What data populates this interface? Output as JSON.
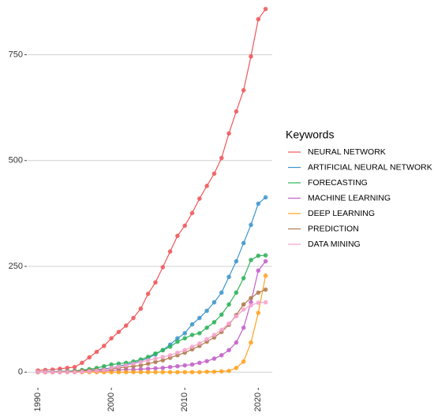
{
  "chart_data": {
    "type": "line",
    "legend_title": "Keywords",
    "x": [
      1990,
      1991,
      1992,
      1993,
      1994,
      1995,
      1996,
      1997,
      1998,
      1999,
      2000,
      2001,
      2002,
      2003,
      2004,
      2005,
      2006,
      2007,
      2008,
      2009,
      2010,
      2011,
      2012,
      2013,
      2014,
      2015,
      2016,
      2017,
      2018,
      2019,
      2020,
      2021
    ],
    "xlim": [
      1988.6,
      2021.9
    ],
    "xticks": [
      1990,
      2000,
      2010,
      2020
    ],
    "ylim": [
      -33,
      870
    ],
    "yticks": [
      0,
      250,
      500,
      750
    ],
    "grid": true,
    "legend": "right",
    "series": [
      {
        "name": "NEURAL NETWORK",
        "color": "#f0575a",
        "values": [
          4,
          5,
          6,
          8,
          10,
          12,
          22,
          35,
          48,
          62,
          80,
          95,
          110,
          128,
          150,
          185,
          212,
          248,
          285,
          322,
          346,
          376,
          410,
          440,
          469,
          506,
          564,
          616,
          666,
          746,
          834,
          858
        ]
      },
      {
        "name": "ARTIFICIAL NEURAL NETWORK",
        "color": "#3e96cc",
        "values": [
          0,
          1,
          1,
          2,
          2,
          3,
          4,
          5,
          6,
          8,
          10,
          14,
          18,
          22,
          27,
          33,
          42,
          52,
          65,
          80,
          92,
          113,
          128,
          145,
          165,
          188,
          225,
          262,
          305,
          348,
          398,
          413
        ]
      },
      {
        "name": "FORECASTING",
        "color": "#2fb35a",
        "values": [
          0,
          0,
          1,
          1,
          2,
          3,
          5,
          7,
          10,
          14,
          18,
          20,
          22,
          25,
          30,
          36,
          44,
          52,
          60,
          72,
          80,
          88,
          92,
          105,
          118,
          136,
          160,
          188,
          222,
          265,
          275,
          276
        ]
      },
      {
        "name": "MACHINE LEARNING",
        "color": "#c460c8",
        "values": [
          0,
          0,
          0,
          0,
          1,
          1,
          1,
          2,
          2,
          3,
          4,
          5,
          6,
          6,
          7,
          8,
          9,
          10,
          12,
          14,
          16,
          18,
          22,
          26,
          32,
          40,
          52,
          70,
          105,
          165,
          240,
          262
        ]
      },
      {
        "name": "DEEP LEARNING",
        "color": "#ffa21f",
        "values": [
          0,
          0,
          0,
          0,
          0,
          0,
          0,
          0,
          0,
          0,
          0,
          0,
          0,
          0,
          0,
          0,
          0,
          0,
          0,
          0,
          0,
          0,
          0,
          1,
          1,
          2,
          3,
          10,
          25,
          70,
          140,
          228
        ]
      },
      {
        "name": "PREDICTION",
        "color": "#b07a4e",
        "values": [
          0,
          0,
          0,
          1,
          1,
          2,
          3,
          4,
          5,
          6,
          8,
          10,
          12,
          14,
          16,
          20,
          24,
          28,
          34,
          40,
          46,
          54,
          62,
          72,
          82,
          95,
          112,
          135,
          160,
          175,
          188,
          195
        ]
      },
      {
        "name": "DATA MINING",
        "color": "#f5a3cc",
        "values": [
          0,
          0,
          0,
          0,
          0,
          0,
          1,
          2,
          3,
          5,
          10,
          13,
          16,
          20,
          24,
          28,
          32,
          36,
          40,
          46,
          52,
          60,
          68,
          78,
          88,
          100,
          115,
          132,
          148,
          158,
          164,
          165
        ]
      }
    ]
  }
}
